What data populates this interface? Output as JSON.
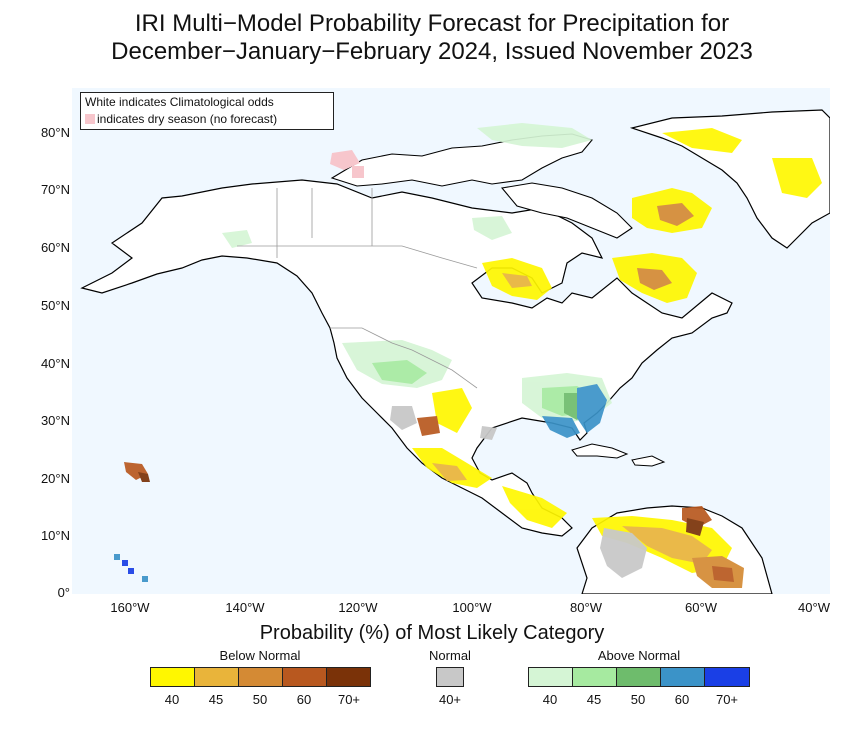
{
  "title": {
    "line1": "IRI Multi−Model Probability Forecast for Precipitation for",
    "line2": "December−January−February 2024, Issued November 2023"
  },
  "map": {
    "ocean_color": "#f0f8ff",
    "coast_color": "#000000",
    "border_color": "#9a9a9a",
    "y_ticks": [
      "80°N",
      "70°N",
      "60°N",
      "50°N",
      "40°N",
      "30°N",
      "20°N",
      "10°N",
      "0°"
    ],
    "x_ticks": [
      "160°W",
      "140°W",
      "120°W",
      "100°W",
      "80°W",
      "60°W",
      "40°W"
    ]
  },
  "note": {
    "line1": "White indicates Climatological odds",
    "line2": "indicates dry season (no forecast)",
    "dry_color": "#f7c6cc"
  },
  "legend": {
    "subtitle": "Probability (%) of Most Likely Category",
    "below": {
      "label": "Below Normal",
      "colors": [
        "#fff700",
        "#e9b43a",
        "#d48a34",
        "#b8581f",
        "#7a3208"
      ],
      "labels": [
        "40",
        "45",
        "50",
        "60",
        "70+"
      ]
    },
    "normal": {
      "label": "Normal",
      "color": "#c8c8c8",
      "tick": "40+"
    },
    "above": {
      "label": "Above Normal",
      "colors": [
        "#d5f5d5",
        "#a6eaa0",
        "#6ebc6c",
        "#3b93c8",
        "#1a3fe6"
      ],
      "labels": [
        "40",
        "45",
        "50",
        "60",
        "70+"
      ]
    }
  }
}
